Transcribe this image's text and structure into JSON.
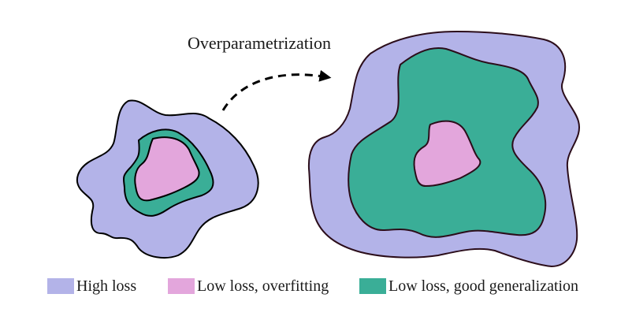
{
  "arrow_label": "Overparametrization",
  "colors": {
    "high_loss": "#b3b3e8",
    "low_loss_overfitting": "#e3a6dc",
    "low_loss_good_generalization": "#3aae97",
    "outline": "#000000",
    "outline_right": "#2b0d1a",
    "arrow": "#000000"
  },
  "legend": [
    {
      "label": "High loss",
      "color_key": "high_loss"
    },
    {
      "label": "Low loss, overfitting",
      "color_key": "low_loss_overfitting"
    },
    {
      "label": "Low loss, good generalization",
      "color_key": "low_loss_good_generalization"
    }
  ]
}
